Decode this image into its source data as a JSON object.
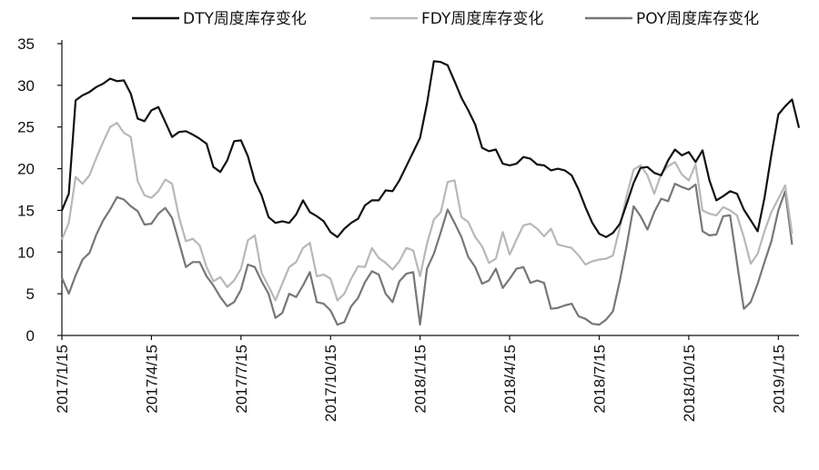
{
  "chart_data": {
    "type": "line",
    "title": "",
    "xlabel": "",
    "ylabel": "",
    "ylim": [
      0,
      35
    ],
    "yticks": [
      0,
      5,
      10,
      15,
      20,
      25,
      30,
      35
    ],
    "xticks": [
      "2017/1/15",
      "2017/4/15",
      "2017/7/15",
      "2017/10/15",
      "2018/1/15",
      "2018/4/15",
      "2018/7/15",
      "2018/10/15",
      "2019/1/15"
    ],
    "xtick_positions": [
      0,
      13,
      26,
      39,
      52,
      65,
      78,
      91,
      104
    ],
    "x_unit": "weeks since 2017/1/15",
    "grid": false,
    "legend_position": "top",
    "series": [
      {
        "name": "DTY周度库存变化",
        "color": "#111111",
        "values": [
          15,
          17,
          28.2,
          28.8,
          29.2,
          29.8,
          30.2,
          30.8,
          30.5,
          30.6,
          29,
          26,
          25.7,
          27,
          27.4,
          25.6,
          23.8,
          24.4,
          24.5,
          24.1,
          23.6,
          23,
          20.2,
          19.6,
          21,
          23.3,
          23.4,
          21.5,
          18.5,
          16.8,
          14.2,
          13.5,
          13.7,
          13.5,
          14.5,
          16.2,
          14.8,
          14.3,
          13.7,
          12.4,
          11.8,
          12.8,
          13.5,
          14,
          15.6,
          16.2,
          16.2,
          17.4,
          17.3,
          18.6,
          20.3,
          22,
          23.7,
          27.8,
          32.9,
          32.8,
          32.4,
          30.5,
          28.5,
          27,
          25.3,
          22.5,
          22.1,
          22.3,
          20.6,
          20.4,
          20.6,
          21.4,
          21.2,
          20.5,
          20.4,
          19.8,
          20,
          19.8,
          19.2,
          17.5,
          15.4,
          13.5,
          12.2,
          11.8,
          12.3,
          13.4,
          15.8,
          18.3,
          20.1,
          20.2,
          19.5,
          19.2,
          21,
          22.3,
          21.6,
          22,
          20.8,
          22.2,
          18.6,
          16.2,
          16.7,
          17.3,
          17,
          15.1,
          13.8,
          12.5,
          16.5,
          21.7,
          26.5,
          27.5,
          28.3,
          24.9
        ]
      },
      {
        "name": "FDY周度库存变化",
        "color": "#b8b8b8",
        "values": [
          11.5,
          13.5,
          19,
          18.2,
          19.2,
          21.3,
          23.2,
          25,
          25.5,
          24.3,
          23.8,
          18.5,
          16.8,
          16.5,
          17.3,
          18.7,
          18.2,
          14.2,
          11.3,
          11.6,
          10.8,
          8.2,
          6.5,
          7,
          5.8,
          6.6,
          8,
          11.4,
          12,
          7.5,
          5.9,
          4.2,
          6.2,
          8.2,
          8.8,
          10.5,
          11.1,
          7.1,
          7.3,
          6.8,
          4.2,
          5,
          6.8,
          8.3,
          8.2,
          10.5,
          9.3,
          8.7,
          7.9,
          8.9,
          10.5,
          10.2,
          7.1,
          11,
          13.9,
          14.8,
          18.4,
          18.6,
          14.2,
          13.6,
          11.8,
          10.7,
          8.7,
          9.2,
          12.4,
          9.7,
          11.5,
          13.2,
          13.4,
          12.8,
          11.9,
          12.8,
          10.9,
          10.7,
          10.5,
          9.6,
          8.5,
          8.9,
          9.1,
          9.2,
          9.6,
          13,
          16.8,
          19.9,
          20.4,
          19.2,
          17,
          19.4,
          20.3,
          20.8,
          19.3,
          18.6,
          20.5,
          15,
          14.6,
          14.4,
          15.4,
          15,
          14.4,
          11.8,
          8.6,
          9.8,
          12.5,
          14.8,
          16.4,
          18,
          12.2
        ]
      },
      {
        "name": "POY周度库存变化",
        "color": "#777777",
        "values": [
          6.9,
          5,
          7.2,
          9.1,
          9.9,
          12.1,
          13.8,
          15.1,
          16.6,
          16.3,
          15.5,
          14.9,
          13.3,
          13.4,
          14.6,
          15.3,
          14.1,
          11.2,
          8.2,
          8.8,
          8.8,
          7.1,
          6,
          4.6,
          3.5,
          4,
          5.5,
          8.5,
          8.2,
          6.5,
          5,
          2.1,
          2.7,
          5,
          4.6,
          6,
          7.6,
          4,
          3.8,
          3,
          1.3,
          1.6,
          3.5,
          4.5,
          6.4,
          7.7,
          7.3,
          5,
          4,
          6.5,
          7.4,
          7.6,
          1.3,
          8,
          9.8,
          12.4,
          15.1,
          13.5,
          11.8,
          9.4,
          8.2,
          6.2,
          6.6,
          8,
          5.7,
          6.8,
          8,
          8.2,
          6.3,
          6.6,
          6.3,
          3.2,
          3.3,
          3.6,
          3.8,
          2.3,
          2,
          1.4,
          1.3,
          1.9,
          2.9,
          6.6,
          10.8,
          15.5,
          14.3,
          12.7,
          14.8,
          16.4,
          16.1,
          18.2,
          17.8,
          17.5,
          18.1,
          12.5,
          12,
          12.1,
          14.3,
          14.4,
          8.7,
          3.2,
          4,
          6.2,
          8.8,
          11.3,
          15,
          17.3,
          10.9
        ]
      }
    ]
  }
}
